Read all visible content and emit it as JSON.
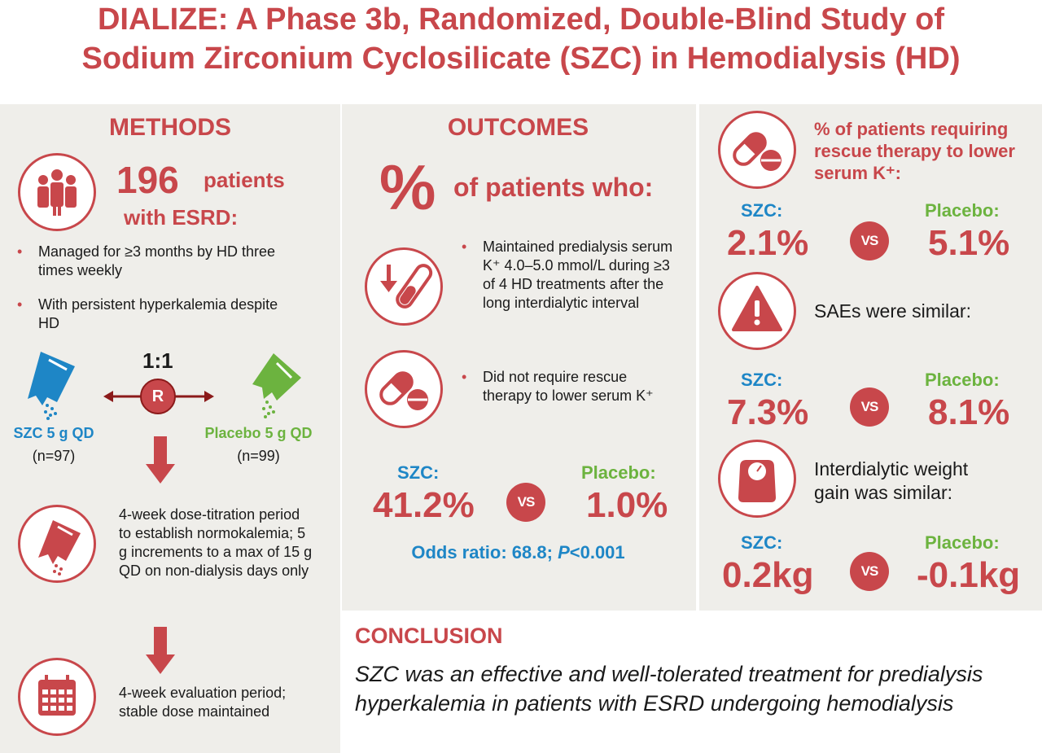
{
  "title": {
    "line1": "DIALIZE: A Phase 3b, Randomized, Double-Blind Study of",
    "line2": "Sodium Zirconium Cyclosilicate (SZC) in Hemodialysis (HD)"
  },
  "methods": {
    "heading": "METHODS",
    "patients_count": "196",
    "patients_word": "patients",
    "patients_esrd": "with ESRD:",
    "bullets": [
      "Managed for ≥3 months by HD three times weekly",
      "With persistent hyperkalemia despite HD"
    ],
    "ratio": "1:1",
    "randomize": "R",
    "szc_arm": "SZC 5 g QD",
    "szc_n": "(n=97)",
    "placebo_arm": "Placebo 5 g QD",
    "placebo_n": "(n=99)",
    "titration_text": "4-week dose-titration period to establish normokalemia; 5 g increments to a max of 15 g QD on non-dialysis days only",
    "evaluation_text": "4-week evaluation period; stable dose maintained"
  },
  "outcomes": {
    "heading": "OUTCOMES",
    "percent_symbol": "%",
    "subheading": "of patients who:",
    "bullet1": "Maintained predialysis serum K⁺ 4.0–5.0 mmol/L during ≥3 of 4 HD treatments after the long interdialytic interval",
    "bullet2": "Did not require rescue therapy to lower serum K⁺",
    "szc_label": "SZC:",
    "szc_value": "41.2%",
    "vs": "VS",
    "placebo_label": "Placebo:",
    "placebo_value": "1.0%",
    "odds_text": "Odds ratio: 68.8; ",
    "p_italic": "P",
    "p_value": "<0.001"
  },
  "right": {
    "rescue_heading": "% of patients requiring rescue therapy to lower serum K⁺:",
    "rescue": {
      "szc_label": "SZC:",
      "szc_value": "2.1%",
      "placebo_label": "Placebo:",
      "placebo_value": "5.1%"
    },
    "sae_text": "SAEs were similar:",
    "sae": {
      "szc_label": "SZC:",
      "szc_value": "7.3%",
      "placebo_label": "Placebo:",
      "placebo_value": "8.1%"
    },
    "weight_text": "Interdialytic weight gain was similar:",
    "weight": {
      "szc_label": "SZC:",
      "szc_value": "0.2kg",
      "placebo_label": "Placebo:",
      "placebo_value": "-0.1kg"
    },
    "vs": "VS"
  },
  "conclusion": {
    "heading": "CONCLUSION",
    "text": "SZC was an effective and well-tolerated treatment for predialysis hyperkalemia in patients with ESRD undergoing hemodialysis"
  },
  "colors": {
    "red": "#c8474b",
    "blue": "#1e86c6",
    "green": "#6cb33f",
    "panel": "#efeeea"
  }
}
